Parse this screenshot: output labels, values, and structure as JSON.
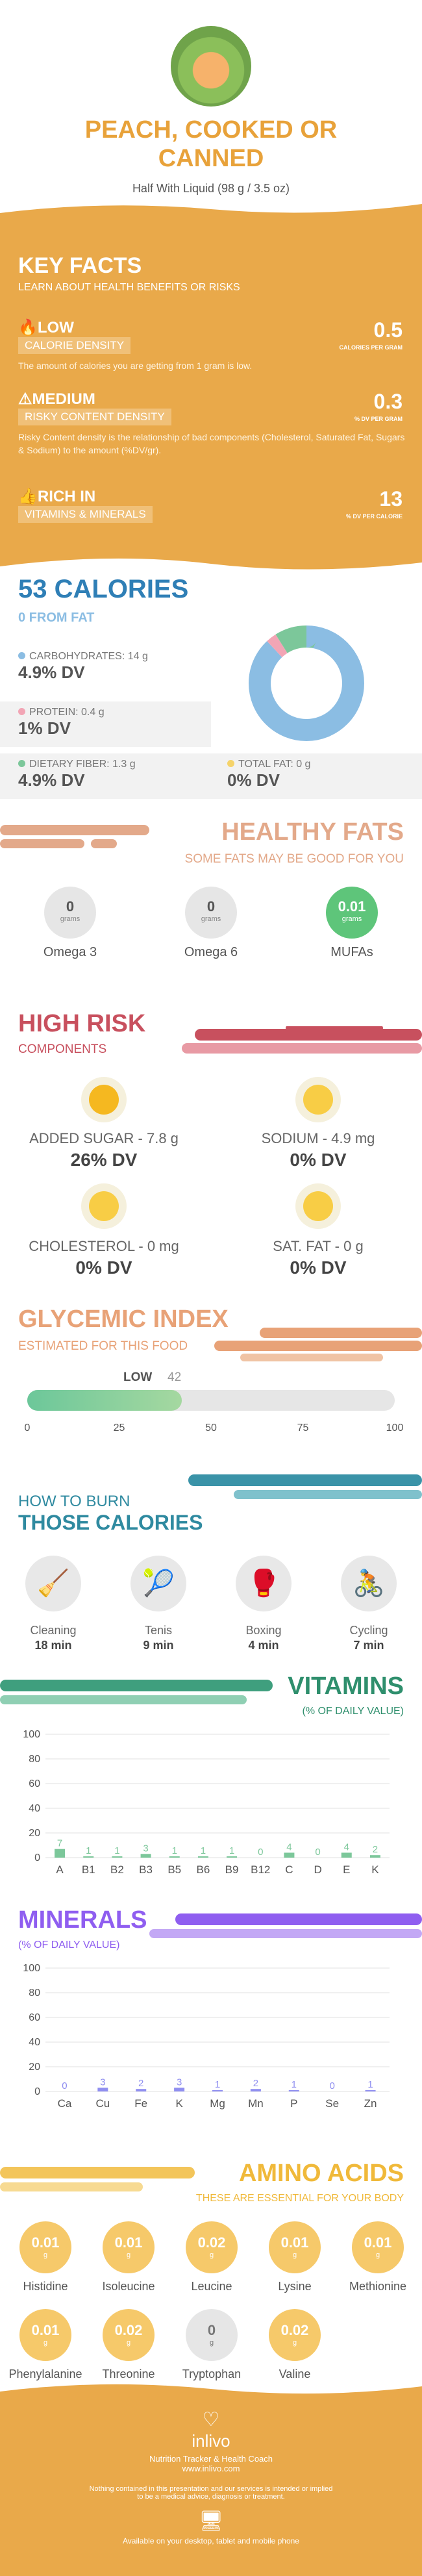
{
  "food": {
    "title_line1": "PEACH, COOKED OR",
    "title_line2": "CANNED",
    "serving": "Half With Liquid (98 g / 3.5 oz)"
  },
  "key_facts": {
    "title": "KEY FACTS",
    "subtitle": "LEARN ABOUT HEALTH BENEFITS OR RISKS",
    "rows": [
      {
        "level": "LOW",
        "label": "CALORIE DENSITY",
        "value": "0.5",
        "unit": "CALORIES PER GRAM",
        "desc": "The amount of calories you are getting from 1 gram is low."
      },
      {
        "level": "MEDIUM",
        "label": "RISKY CONTENT DENSITY",
        "value": "0.3",
        "unit": "% DV PER GRAM",
        "desc": "Risky Content density is the relationship of bad components (Cholesterol, Saturated Fat, Sugars & Sodium) to the amount (%DV/gr)."
      },
      {
        "level": "RICH  IN",
        "label": "VITAMINS & MINERALS",
        "value": "13",
        "unit": "% DV PER CALORIE",
        "desc": ""
      }
    ],
    "colors": {
      "bg": "#e9a94a"
    }
  },
  "calories": {
    "title": "53 CALORIES",
    "from_fat": "0 FROM FAT",
    "carbs_label": "CARBOHYDRATES: 14 g",
    "carbs_dv": "4.9% DV",
    "protein_label": "PROTEIN: 0.4 g",
    "protein_dv": "1% DV",
    "fiber_label": "DIETARY FIBER: 1.3 g",
    "fiber_dv": "4.9% DV",
    "fat_label": "TOTAL FAT: 0 g",
    "fat_dv": "0% DV",
    "donut": {
      "carbs": 88,
      "protein": 3,
      "fiber": 9,
      "fat": 0
    },
    "colors": {
      "carbs": "#8bbde3",
      "protein": "#f2a5b5",
      "fiber": "#7cc79a",
      "fat": "#f5d36a",
      "title": "#2f7fb6"
    }
  },
  "fats": {
    "title": "HEALTHY FATS",
    "subtitle": "SOME FATS MAY BE GOOD FOR YOU",
    "items": [
      {
        "value": "0",
        "unit": "grams",
        "name": "Omega 3"
      },
      {
        "value": "0",
        "unit": "grams",
        "name": "Omega 6"
      },
      {
        "value": "0.01",
        "unit": "grams",
        "name": "MUFAs"
      }
    ]
  },
  "risk": {
    "title": "HIGH RISK",
    "subtitle": "COMPONENTS",
    "items": [
      {
        "label": "ADDED SUGAR - 7.8 g",
        "dv": "26% DV"
      },
      {
        "label": "SODIUM - 4.9 mg",
        "dv": "0% DV"
      },
      {
        "label": "CHOLESTEROL - 0 mg",
        "dv": "0% DV"
      },
      {
        "label": "SAT. FAT - 0 g",
        "dv": "0% DV"
      }
    ]
  },
  "glycemic": {
    "title": "GLYCEMIC INDEX",
    "subtitle": "ESTIMATED FOR THIS FOOD",
    "level": "LOW",
    "value": 42,
    "ticks": [
      "0",
      "25",
      "50",
      "75",
      "100"
    ]
  },
  "burn": {
    "title1": "HOW TO BURN",
    "title2": "THOSE CALORIES",
    "items": [
      {
        "name": "Cleaning",
        "time": "18 min",
        "icon": "cleaning-icon"
      },
      {
        "name": "Tenis",
        "time": "9 min",
        "icon": "tennis-icon"
      },
      {
        "name": "Boxing",
        "time": "4 min",
        "icon": "boxing-icon"
      },
      {
        "name": "Cycling",
        "time": "7 min",
        "icon": "cycling-icon"
      }
    ]
  },
  "chart_data": [
    {
      "type": "bar",
      "title": "VITAMINS",
      "subtitle": "(% OF DAILY VALUE)",
      "categories": [
        "A",
        "B1",
        "B2",
        "B3",
        "B5",
        "B6",
        "B9",
        "B12",
        "C",
        "D",
        "E",
        "K"
      ],
      "values": [
        7,
        1,
        1,
        3,
        1,
        1,
        1,
        0,
        4,
        0,
        4,
        2
      ],
      "ylim": [
        0,
        100
      ],
      "yticks": [
        "0",
        "20",
        "40",
        "60",
        "80",
        "100"
      ],
      "color": "#7cc79a"
    },
    {
      "type": "bar",
      "title": "MINERALS",
      "subtitle": "(% OF DAILY VALUE)",
      "categories": [
        "Ca",
        "Cu",
        "Fe",
        "K",
        "Mg",
        "Mn",
        "P",
        "Se",
        "Zn"
      ],
      "values": [
        0,
        3,
        2,
        3,
        1,
        2,
        1,
        0,
        1
      ],
      "ylim": [
        0,
        100
      ],
      "yticks": [
        "0",
        "20",
        "40",
        "60",
        "80",
        "100"
      ],
      "color": "#8f8ef0"
    }
  ],
  "amino": {
    "title": "AMINO ACIDS",
    "subtitle": "THESE ARE ESSENTIAL FOR YOUR BODY",
    "items": [
      {
        "value": "0.01",
        "unit": "g",
        "name": "Histidine"
      },
      {
        "value": "0.01",
        "unit": "g",
        "name": "Isoleucine"
      },
      {
        "value": "0.02",
        "unit": "g",
        "name": "Leucine"
      },
      {
        "value": "0.01",
        "unit": "g",
        "name": "Lysine"
      },
      {
        "value": "0.01",
        "unit": "g",
        "name": "Methionine"
      },
      {
        "value": "0.01",
        "unit": "g",
        "name": "Phenylalanine"
      },
      {
        "value": "0.02",
        "unit": "g",
        "name": "Threonine"
      },
      {
        "value": "0",
        "unit": "g",
        "name": "Tryptophan"
      },
      {
        "value": "0.02",
        "unit": "g",
        "name": "Valine"
      }
    ]
  },
  "footer": {
    "brand": "inlivo",
    "tagline": "Nutrition Tracker & Health Coach",
    "url": "www.inlivo.com",
    "disclaimer1": "Nothing contained in this presentation and our services is intended or implied",
    "disclaimer2": "to be a medical advice, diagnosis or treatment.",
    "available": "Available on your desktop, tablet and mobile phone"
  }
}
